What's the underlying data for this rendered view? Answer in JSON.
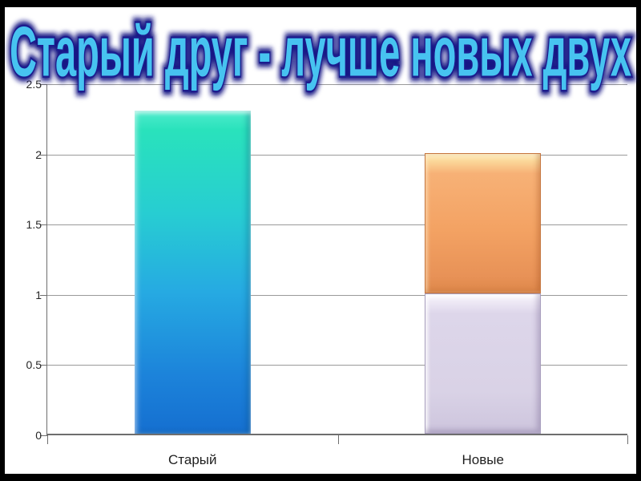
{
  "window": {
    "frame_color": "#000000",
    "slide_bg": "#ffffff"
  },
  "title": {
    "text": "Старый друг - лучше новых двух",
    "fill_color": "#47c3f0",
    "outline_color": "#1c1c8e",
    "shadow_color": "#181884"
  },
  "chart_data": {
    "type": "bar",
    "subtype": "stacked-column",
    "title": "Старый друг - лучше новых двух",
    "categories": [
      "Старый",
      "Новые"
    ],
    "bars": [
      {
        "category": "Старый",
        "total": 2.3,
        "segments": [
          {
            "value": 2.3,
            "color_key": "teal_blue_gradient"
          }
        ]
      },
      {
        "category": "Новые",
        "total": 2.0,
        "segments": [
          {
            "value": 1.0,
            "color_key": "lavender"
          },
          {
            "value": 1.0,
            "color_key": "orange"
          }
        ]
      }
    ],
    "ylim": [
      0,
      2.5
    ],
    "yticks": [
      "0",
      "0.5",
      "1",
      "1.5",
      "2",
      "2.5"
    ],
    "xlabel": "",
    "ylabel": "",
    "grid": true,
    "legend": "none",
    "colors": {
      "teal_blue_gradient": [
        "#2fe5bd",
        "#27c7d8",
        "#1f9ce2",
        "#156fd0"
      ],
      "orange": [
        "#fdeab0",
        "#f6ad6e",
        "#df8a4f"
      ],
      "lavender": [
        "#ffffff",
        "#dcd5e8",
        "#c9c0da"
      ],
      "gridline": "#9a9a9a",
      "axis": "#6e6e6e",
      "tick_text": "#262626"
    }
  }
}
